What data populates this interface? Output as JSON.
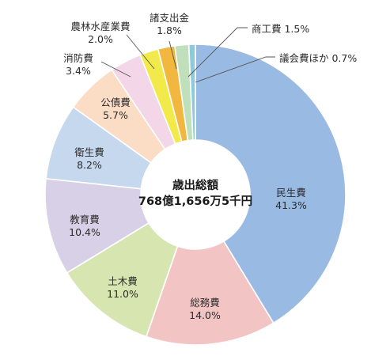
{
  "chart_data": {
    "type": "pie",
    "style": "donut",
    "center_title": "歳出総額",
    "center_value": "768億1,656万5千円",
    "start_direction": "top",
    "order": "clockwise",
    "slices": [
      {
        "name": "民生費",
        "value": 41.3,
        "label": "41.3%",
        "color": "#99bbe3"
      },
      {
        "name": "総務費",
        "value": 14.0,
        "label": "14.0%",
        "color": "#f2c4c4"
      },
      {
        "name": "土木費",
        "value": 11.0,
        "label": "11.0%",
        "color": "#d7e6b0"
      },
      {
        "name": "教育費",
        "value": 10.4,
        "label": "10.4%",
        "color": "#d8d0e6"
      },
      {
        "name": "衛生費",
        "value": 8.2,
        "label": "8.2%",
        "color": "#c6d8ee"
      },
      {
        "name": "公債費",
        "value": 5.7,
        "label": "5.7%",
        "color": "#fbdcc4"
      },
      {
        "name": "消防費",
        "value": 3.4,
        "label": "3.4%",
        "color": "#f3d6e8"
      },
      {
        "name": "農林水産業費",
        "value": 2.0,
        "label": "2.0%",
        "color": "#f2ea4a"
      },
      {
        "name": "諸支出金",
        "value": 1.8,
        "label": "1.8%",
        "color": "#f2b73f"
      },
      {
        "name": "商工費",
        "value": 1.5,
        "label": "1.5%",
        "color": "#bfe0ba"
      },
      {
        "name": "議会費ほか",
        "value": 0.7,
        "label": "0.7%",
        "color": "#8fcad9"
      }
    ]
  }
}
